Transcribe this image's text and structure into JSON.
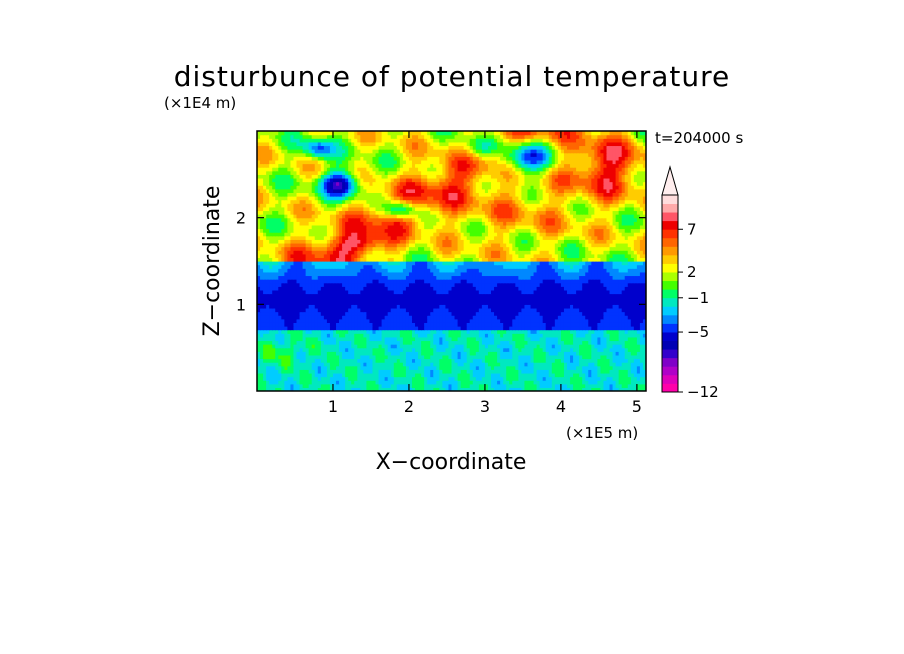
{
  "chart_data": {
    "type": "heatmap",
    "title": "disturbunce of potential temperature",
    "xlabel": "X−coordinate",
    "ylabel": "Z−coordinate",
    "x_unit_label": "(×1E5 m)",
    "y_unit_label": "(×1E4 m)",
    "time_label": "t=204000 s",
    "x_ticks": [
      "1",
      "2",
      "3",
      "4",
      "5"
    ],
    "x_tick_values": [
      1,
      2,
      3,
      4,
      5
    ],
    "y_ticks": [
      "1",
      "2"
    ],
    "y_tick_values": [
      1,
      2
    ],
    "xlim": [
      0,
      5.12
    ],
    "ylim": [
      0,
      3.0
    ],
    "colorbar": {
      "tick_labels": [
        "−12",
        "−5",
        "−1",
        "2",
        "7"
      ],
      "levels": [
        -12,
        -11,
        -10,
        -9,
        -8,
        -7,
        -6,
        -5,
        -4,
        -3,
        -2,
        -1,
        0,
        1,
        2,
        3,
        4,
        5,
        6,
        7,
        8,
        9
      ],
      "colors": [
        "#ff00aa",
        "#dd00bb",
        "#b000c8",
        "#8000c8",
        "#3300cc",
        "#0000b4",
        "#0000cc",
        "#0033ff",
        "#0088ff",
        "#00ccff",
        "#00e8c0",
        "#00ff66",
        "#44ff00",
        "#aaff00",
        "#ffff00",
        "#ffcc00",
        "#ff9900",
        "#ff6600",
        "#ff3300",
        "#ee0000",
        "#ff5566",
        "#ffaaaa",
        "#ffdddd"
      ],
      "extend": "max"
    },
    "grid": false
  }
}
